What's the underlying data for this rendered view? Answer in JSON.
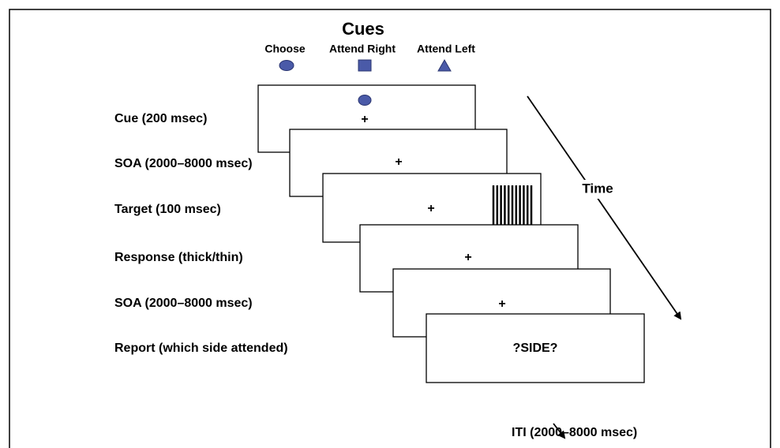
{
  "cues": {
    "title": "Cues",
    "items": [
      "Choose",
      "Attend Right",
      "Attend Left"
    ]
  },
  "stages": [
    "Cue  (200 msec)",
    "SOA (2000–8000 msec)",
    "Target  (100 msec)",
    "Response  (thick/thin)",
    "SOA  (2000–8000 msec)",
    "Report  (which side attended)"
  ],
  "screens": [
    "+",
    "+",
    "+",
    "+",
    "+",
    "?SIDE?"
  ],
  "time_label": "Time",
  "iti_label": "ITI (2000–8000 msec)"
}
